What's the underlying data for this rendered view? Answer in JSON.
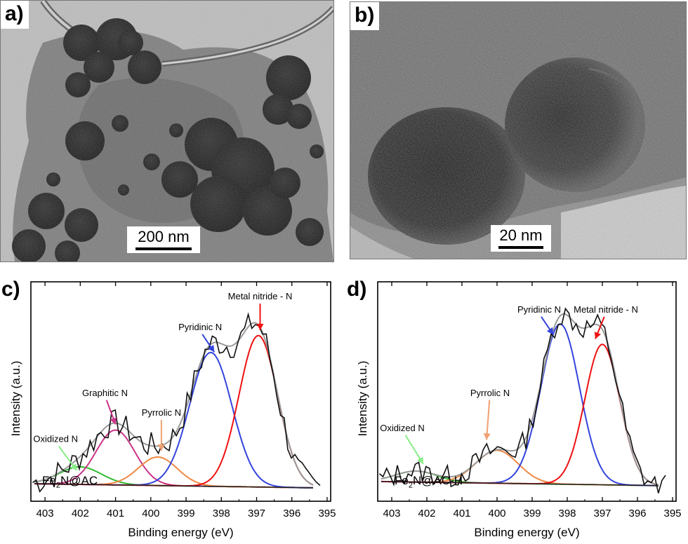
{
  "panels": {
    "a": {
      "letter": "a)",
      "scalebar": "200 nm"
    },
    "b": {
      "letter": "b)",
      "scalebar": "20 nm"
    }
  },
  "colors": {
    "raw": "#111111",
    "envelope": "#9a9a9a",
    "baseline": "#222222",
    "oxidized": "#33bb33",
    "graphitic": "#cc3388",
    "pyrrolic": "#ee8844",
    "pyridinic": "#3344dd",
    "nitride": "#ee1111",
    "arrow_oxidized": "#88ee88",
    "arrow_graphitic": "#cc3388",
    "arrow_pyrrolic": "#f0a070",
    "arrow_pyridinic": "#3344dd",
    "arrow_nitride": "#ee1111"
  },
  "chart_data": [
    {
      "panel": "c)",
      "type": "line",
      "sample_main": "Fe",
      "sample_sub": "2",
      "sample_rest": "N@AC",
      "xlabel": "Binding energy (eV)",
      "ylabel": "Intensity (a.u.)",
      "xlim": [
        403.4,
        394.9
      ],
      "x_reversed": true,
      "xticks": [
        403,
        402,
        401,
        400,
        399,
        398,
        397,
        396,
        395
      ],
      "ylim": [
        0,
        1
      ],
      "baseline": [
        0.08,
        0.06
      ],
      "series": [
        {
          "name": "Oxidized N",
          "center": 402.0,
          "amplitude": 0.08,
          "width": 0.6,
          "color_key": "oxidized"
        },
        {
          "name": "Graphitic N",
          "center": 401.0,
          "amplitude": 0.25,
          "width": 0.55,
          "color_key": "graphitic"
        },
        {
          "name": "Pyrrolic N",
          "center": 399.8,
          "amplitude": 0.13,
          "width": 0.55,
          "color_key": "pyrrolic"
        },
        {
          "name": "Pyridinic N",
          "center": 398.3,
          "amplitude": 0.61,
          "width": 0.6,
          "color_key": "pyridinic"
        },
        {
          "name": "Metal nitride - N",
          "center": 396.95,
          "amplitude": 0.69,
          "width": 0.55,
          "color_key": "nitride"
        }
      ],
      "annotations": [
        {
          "text": "Oxidized N",
          "x": 402.7,
          "y": 0.27,
          "arrow_to": [
            402.1,
            0.14
          ],
          "color_key": "arrow_oxidized"
        },
        {
          "text": "Graphitic N",
          "x": 401.3,
          "y": 0.48,
          "arrow_to": [
            401.0,
            0.35
          ],
          "color_key": "arrow_graphitic"
        },
        {
          "text": "Pyrrolic N",
          "x": 399.7,
          "y": 0.39,
          "arrow_to": [
            399.7,
            0.23
          ],
          "color_key": "arrow_pyrrolic"
        },
        {
          "text": "Pyridinic N",
          "x": 398.6,
          "y": 0.78,
          "arrow_to": [
            398.2,
            0.68
          ],
          "color_key": "arrow_pyridinic"
        },
        {
          "text": "Metal nitride - N",
          "x": 396.9,
          "y": 0.92,
          "arrow_to": [
            396.9,
            0.78
          ],
          "color_key": "arrow_nitride"
        }
      ],
      "noise": 0.035,
      "seed": 7
    },
    {
      "panel": "d)",
      "type": "line",
      "sample_main": "Fe",
      "sample_sub": "2",
      "sample_rest": "N@AC-H",
      "xlabel": "Binding energy (eV)",
      "ylabel": "Intensity (a.u.)",
      "xlim": [
        403.4,
        394.9
      ],
      "x_reversed": true,
      "xticks": [
        403,
        402,
        401,
        400,
        399,
        398,
        397,
        396,
        395
      ],
      "ylim": [
        0,
        1
      ],
      "baseline": [
        0.09,
        0.07
      ],
      "series": [
        {
          "name": "Oxidized N",
          "center": 402.3,
          "amplitude": 0.05,
          "width": 0.6,
          "color_key": "oxidized"
        },
        {
          "name": "Pyrrolic N",
          "center": 400.0,
          "amplitude": 0.15,
          "width": 0.6,
          "color_key": "pyrrolic"
        },
        {
          "name": "Pyridinic N",
          "center": 398.2,
          "amplitude": 0.73,
          "width": 0.55,
          "color_key": "pyridinic"
        },
        {
          "name": "Metal nitride - N",
          "center": 397.0,
          "amplitude": 0.64,
          "width": 0.5,
          "color_key": "nitride"
        }
      ],
      "annotations": [
        {
          "text": "Oxidized N",
          "x": 402.7,
          "y": 0.32,
          "arrow_to": [
            402.1,
            0.17
          ],
          "color_key": "arrow_oxidized"
        },
        {
          "text": "Pyrrolic N",
          "x": 400.2,
          "y": 0.48,
          "arrow_to": [
            400.3,
            0.28
          ],
          "color_key": "arrow_pyrrolic"
        },
        {
          "text": "Pyridinic N",
          "x": 398.8,
          "y": 0.86,
          "arrow_to": [
            398.4,
            0.76
          ],
          "color_key": "arrow_pyridinic"
        },
        {
          "text": "Metal nitride - N",
          "x": 396.9,
          "y": 0.86,
          "arrow_to": [
            397.2,
            0.74
          ],
          "color_key": "arrow_nitride"
        }
      ],
      "noise": 0.03,
      "seed": 13
    }
  ]
}
